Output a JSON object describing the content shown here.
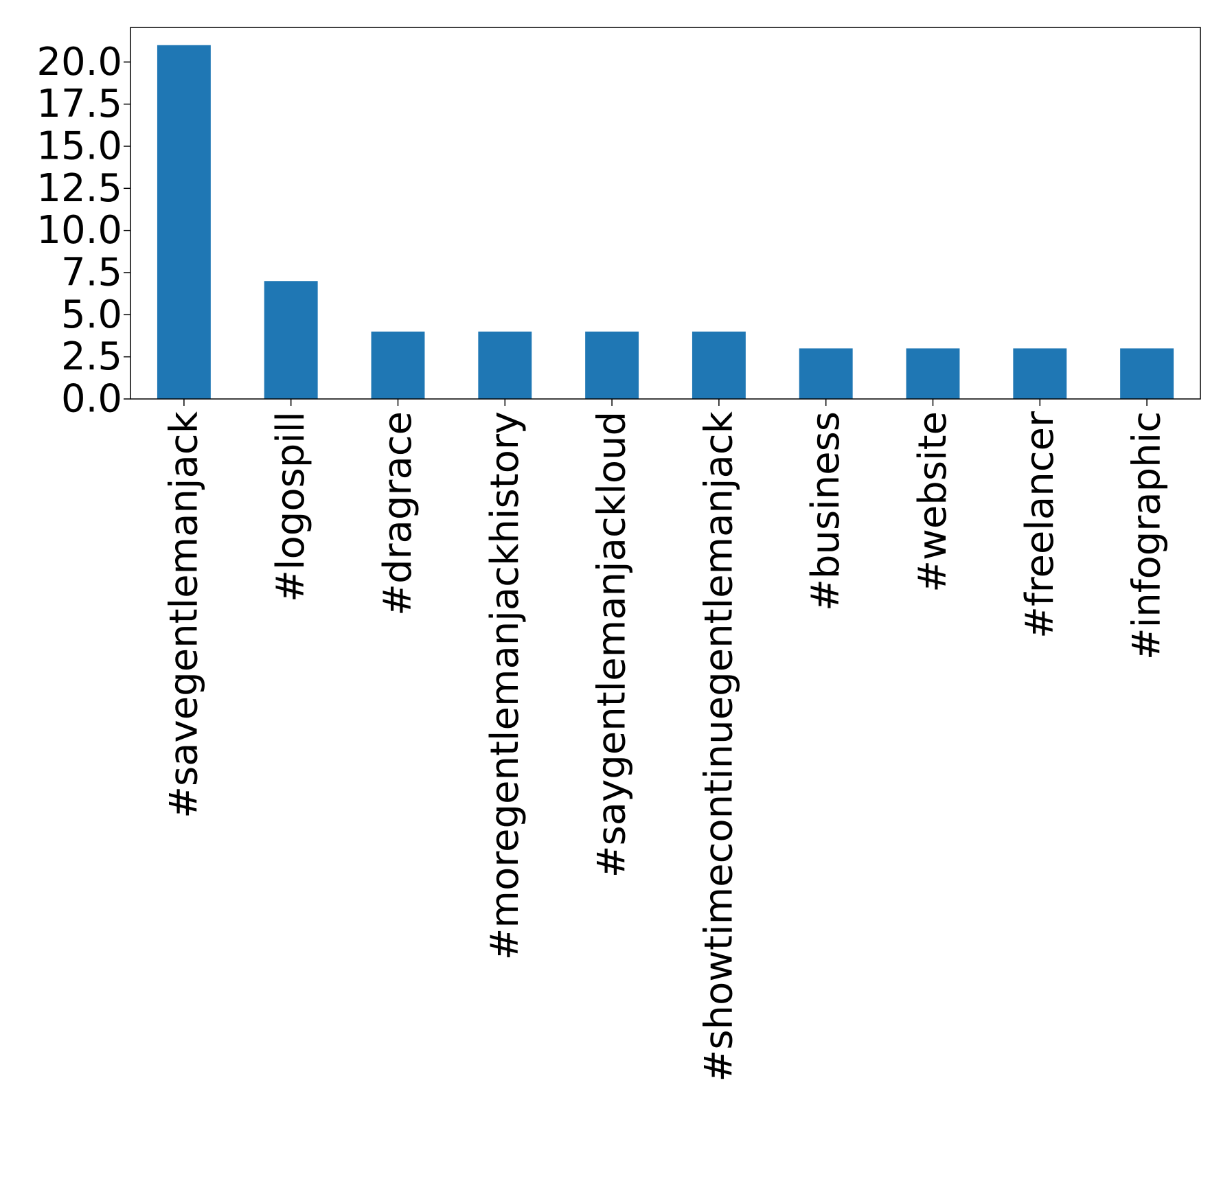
{
  "chart_data": {
    "type": "bar",
    "title": "",
    "xlabel": "",
    "ylabel": "",
    "categories": [
      "#savegentlemanjack",
      "#logospill",
      "#dragrace",
      "#moregentlemanjackhistory",
      "#saygentlemanjackloud",
      "#showtimecontinuegentlemanjack",
      "#business",
      "#website",
      "#freelancer",
      "#infographic"
    ],
    "values": [
      21,
      7,
      4,
      4,
      4,
      4,
      3,
      3,
      3,
      3
    ],
    "ylim": [
      0,
      22.05
    ],
    "yticks": [
      "0.0",
      "2.5",
      "5.0",
      "7.5",
      "10.0",
      "12.5",
      "15.0",
      "17.5",
      "20.0"
    ],
    "ytick_values": [
      0,
      2.5,
      5,
      7.5,
      10,
      12.5,
      15,
      17.5,
      20
    ],
    "bar_color": "#1f77b4",
    "grid": false,
    "legend": false
  }
}
